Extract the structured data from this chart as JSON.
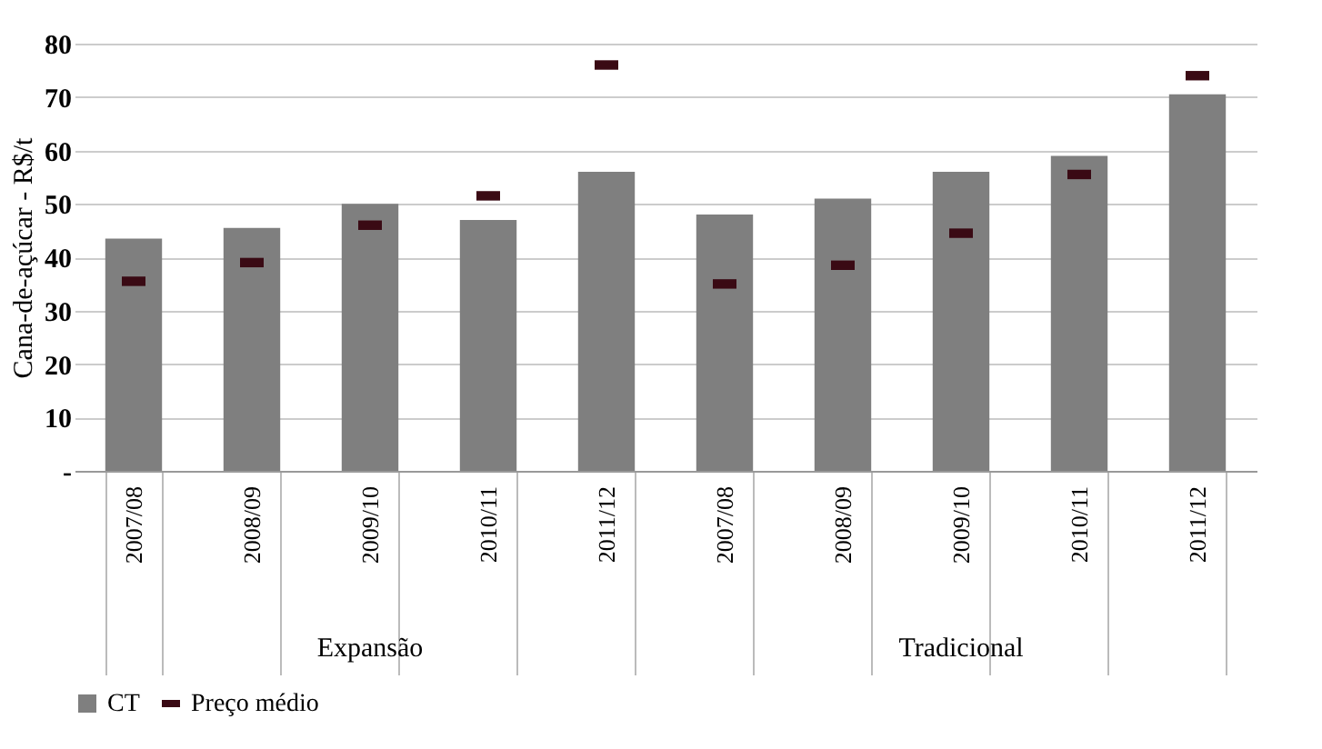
{
  "chart_data": {
    "type": "bar",
    "ylabel": "Cana-de-açúcar - R$/t",
    "categories": [
      "2007/08",
      "2008/09",
      "2009/10",
      "2010/11",
      "2011/12",
      "2007/08",
      "2008/09",
      "2009/10",
      "2010/11",
      "2011/12"
    ],
    "series": [
      {
        "name": "CT",
        "color": "#7f7f7f",
        "values": [
          43.5,
          45.5,
          50,
          47,
          56,
          48,
          51,
          56,
          59,
          70.5
        ]
      },
      {
        "name": "Preço médio",
        "type": "scatter",
        "color": "#3a0a14",
        "values": [
          35.5,
          39,
          46,
          51.5,
          76,
          35,
          38.5,
          44.5,
          55.5,
          74
        ]
      }
    ],
    "annotations": [
      "Expansão",
      "Tradicional"
    ],
    "ylim": [
      0,
      80
    ],
    "yticks": [
      {
        "value": 0,
        "label": "-"
      },
      10,
      20,
      30,
      40,
      50,
      60,
      70,
      80
    ],
    "grid": "y",
    "legend": "bottom"
  }
}
